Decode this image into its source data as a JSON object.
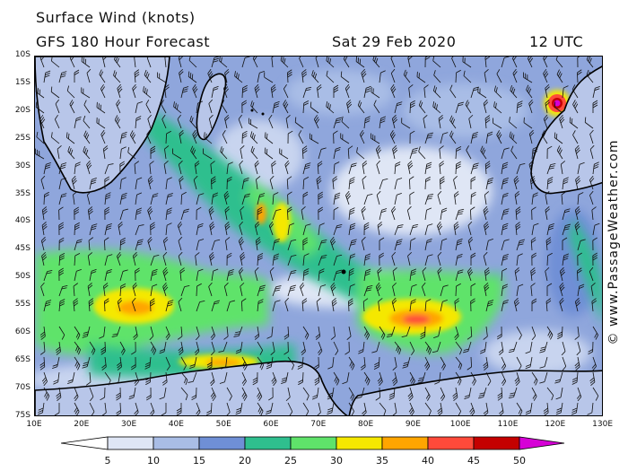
{
  "header": {
    "title": "Surface Wind (knots)",
    "forecast": "GFS 180 Hour Forecast",
    "date": "Sat 29 Feb 2020",
    "time": "12 UTC"
  },
  "credit": "© www.PassageWeather.com",
  "axes": {
    "lat_labels": [
      "10S",
      "15S",
      "20S",
      "25S",
      "30S",
      "35S",
      "40S",
      "45S",
      "50S",
      "55S",
      "60S",
      "65S",
      "70S",
      "75S"
    ],
    "lon_labels": [
      "10E",
      "20E",
      "30E",
      "40E",
      "50E",
      "60E",
      "70E",
      "80E",
      "90E",
      "100E",
      "110E",
      "120E",
      "130E"
    ]
  },
  "scale": {
    "labels": [
      "5",
      "10",
      "15",
      "20",
      "25",
      "30",
      "35",
      "40",
      "45",
      "50"
    ],
    "colors": [
      "#ffffff",
      "#dfe6f5",
      "#a9bde6",
      "#6f8fd6",
      "#2fbf8e",
      "#5fe36a",
      "#f5e800",
      "#ffa500",
      "#ff4a3a",
      "#c40000",
      "#d600d6"
    ]
  },
  "map": {
    "colors": {
      "ocean_base": "#8fa6dc",
      "calm": "#dfe6f5",
      "light": "#a9bde6",
      "moderate": "#6f8fd6",
      "fresh": "#2fbf8e",
      "strong": "#5fe36a",
      "gale": "#f5e800",
      "severe": "#ffa500",
      "storm": "#ff4a3a",
      "violent": "#c40000",
      "extreme": "#d600d6",
      "coast": "#000000"
    }
  }
}
